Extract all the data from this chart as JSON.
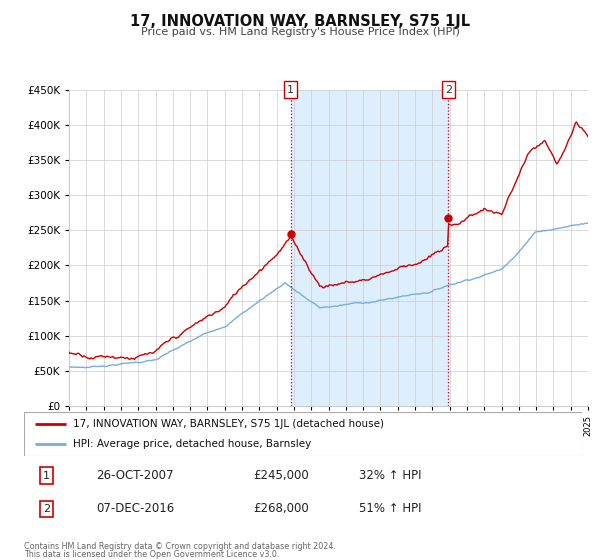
{
  "title": "17, INNOVATION WAY, BARNSLEY, S75 1JL",
  "subtitle": "Price paid vs. HM Land Registry's House Price Index (HPI)",
  "legend_line1": "17, INNOVATION WAY, BARNSLEY, S75 1JL (detached house)",
  "legend_line2": "HPI: Average price, detached house, Barnsley",
  "annotation1_label": "1",
  "annotation1_date": "26-OCT-2007",
  "annotation1_price": "£245,000",
  "annotation1_hpi": "32% ↑ HPI",
  "annotation2_label": "2",
  "annotation2_date": "07-DEC-2016",
  "annotation2_price": "£268,000",
  "annotation2_hpi": "51% ↑ HPI",
  "footnote1": "Contains HM Land Registry data © Crown copyright and database right 2024.",
  "footnote2": "This data is licensed under the Open Government Licence v3.0.",
  "red_color": "#cc0000",
  "blue_color": "#7aaddb",
  "shaded_color": "#ddeeff",
  "vline_color": "#cc0000",
  "background_color": "#ffffff",
  "grid_color": "#cccccc",
  "ylim_min": 0,
  "ylim_max": 450000,
  "xlim_min": 1995,
  "xlim_max": 2025,
  "marker1_year": 2007.82,
  "marker1_value": 245000,
  "marker2_year": 2016.93,
  "marker2_value": 268000,
  "yticks": [
    0,
    50000,
    100000,
    150000,
    200000,
    250000,
    300000,
    350000,
    400000,
    450000
  ]
}
